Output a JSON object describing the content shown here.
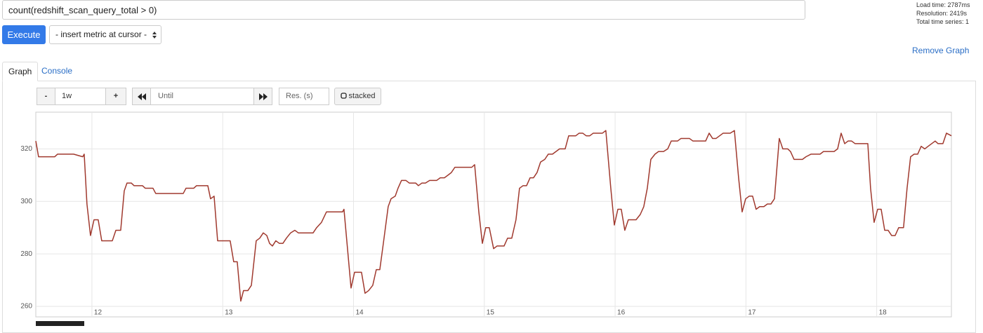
{
  "ui": {
    "query": "count(redshift_scan_query_total > 0)",
    "stats": [
      "Load time: 2787ms",
      "Resolution: 2419s",
      "Total time series: 1"
    ],
    "execute": "Execute",
    "insert_metric": "- insert metric at cursor -",
    "remove_graph": "Remove Graph",
    "tabs": [
      "Graph",
      "Console"
    ],
    "range_minus": "-",
    "range": "1w",
    "range_plus": "+",
    "until": "Until",
    "resolution": "Res. (s)",
    "stacked": "stacked"
  },
  "chart_data": {
    "type": "line",
    "color": "#a0392e",
    "grid": true,
    "xlim": [
      11.571,
      18.571
    ],
    "xticks": [
      12,
      13,
      14,
      15,
      16,
      17,
      18
    ],
    "ylim": [
      256,
      334
    ],
    "yticks": [
      260,
      280,
      300,
      320
    ],
    "x": [
      11.571,
      11.592,
      11.715,
      11.737,
      11.86,
      11.93,
      11.941,
      11.962,
      11.989,
      12.016,
      12.048,
      12.075,
      12.156,
      12.183,
      12.22,
      12.247,
      12.268,
      12.301,
      12.322,
      12.386,
      12.408,
      12.467,
      12.488,
      12.698,
      12.719,
      12.778,
      12.8,
      12.886,
      12.907,
      12.934,
      12.961,
      13.057,
      13.084,
      13.111,
      13.138,
      13.159,
      13.192,
      13.219,
      13.256,
      13.283,
      13.31,
      13.337,
      13.358,
      13.38,
      13.406,
      13.433,
      13.46,
      13.487,
      13.519,
      13.551,
      13.578,
      13.691,
      13.718,
      13.755,
      13.793,
      13.916,
      13.927,
      13.981,
      14.008,
      14.061,
      14.088,
      14.115,
      14.147,
      14.174,
      14.201,
      14.228,
      14.265,
      14.287,
      14.319,
      14.34,
      14.367,
      14.4,
      14.426,
      14.475,
      14.496,
      14.523,
      14.55,
      14.582,
      14.636,
      14.663,
      14.695,
      14.722,
      14.748,
      14.775,
      14.904,
      14.926,
      14.958,
      14.985,
      15.011,
      15.038,
      15.071,
      15.097,
      15.151,
      15.178,
      15.21,
      15.242,
      15.269,
      15.296,
      15.323,
      15.35,
      15.376,
      15.403,
      15.43,
      15.462,
      15.489,
      15.521,
      15.548,
      15.575,
      15.618,
      15.645,
      15.699,
      15.725,
      15.752,
      15.779,
      15.806,
      15.833,
      15.903,
      15.929,
      15.967,
      15.994,
      16.021,
      16.047,
      16.074,
      16.101,
      16.16,
      16.192,
      16.219,
      16.246,
      16.273,
      16.305,
      16.332,
      16.37,
      16.402,
      16.429,
      16.477,
      16.504,
      16.568,
      16.595,
      16.692,
      16.719,
      16.745,
      16.772,
      16.799,
      16.826,
      16.88,
      16.912,
      16.944,
      16.971,
      16.998,
      17.025,
      17.051,
      17.078,
      17.105,
      17.137,
      17.164,
      17.191,
      17.218,
      17.255,
      17.282,
      17.32,
      17.341,
      17.368,
      17.432,
      17.459,
      17.497,
      17.567,
      17.593,
      17.674,
      17.701,
      17.728,
      17.755,
      17.781,
      17.808,
      17.835,
      17.932,
      17.953,
      17.98,
      18.007,
      18.034,
      18.061,
      18.087,
      18.114,
      18.141,
      18.168,
      18.205,
      18.232,
      18.259,
      18.286,
      18.313,
      18.34,
      18.367,
      18.393,
      18.447,
      18.469,
      18.506,
      18.533,
      18.571
    ],
    "values": [
      323,
      317,
      317,
      318,
      318,
      317,
      318,
      299,
      287,
      293,
      293,
      285,
      285,
      289,
      289,
      304,
      307,
      307,
      306,
      306,
      305,
      305,
      303,
      303,
      305,
      305,
      306,
      306,
      301,
      302,
      285,
      285,
      277,
      277,
      262,
      266,
      266,
      268,
      285,
      286,
      288,
      287,
      284,
      283,
      285,
      284,
      284,
      286,
      288,
      289,
      288,
      288,
      290,
      292,
      296,
      296,
      297,
      267,
      273,
      273,
      265,
      266,
      268,
      274,
      274,
      284,
      298,
      301,
      302,
      305,
      308,
      308,
      307,
      307,
      306,
      307,
      307,
      308,
      308,
      309,
      309,
      310,
      311,
      313,
      313,
      314,
      296,
      284,
      290,
      290,
      282,
      283,
      283,
      286,
      286,
      293,
      305,
      306,
      306,
      309,
      309,
      311,
      315,
      316,
      318,
      318,
      319,
      320,
      320,
      325,
      325,
      326,
      326,
      325,
      325,
      326,
      326,
      327,
      305,
      291,
      297,
      297,
      289,
      293,
      293,
      295,
      298,
      305,
      316,
      318,
      319,
      319,
      320,
      323,
      323,
      324,
      324,
      323,
      323,
      326,
      324,
      324,
      325,
      326,
      326,
      327,
      309,
      296,
      301,
      302,
      302,
      297,
      298,
      298,
      299,
      299,
      301,
      324,
      320,
      320,
      319,
      316,
      316,
      317,
      318,
      318,
      319,
      319,
      320,
      326,
      322,
      323,
      323,
      322,
      322,
      305,
      292,
      297,
      297,
      289,
      289,
      287,
      287,
      290,
      290,
      305,
      317,
      318,
      318,
      321,
      320,
      321,
      323,
      322,
      322,
      326,
      325
    ]
  }
}
